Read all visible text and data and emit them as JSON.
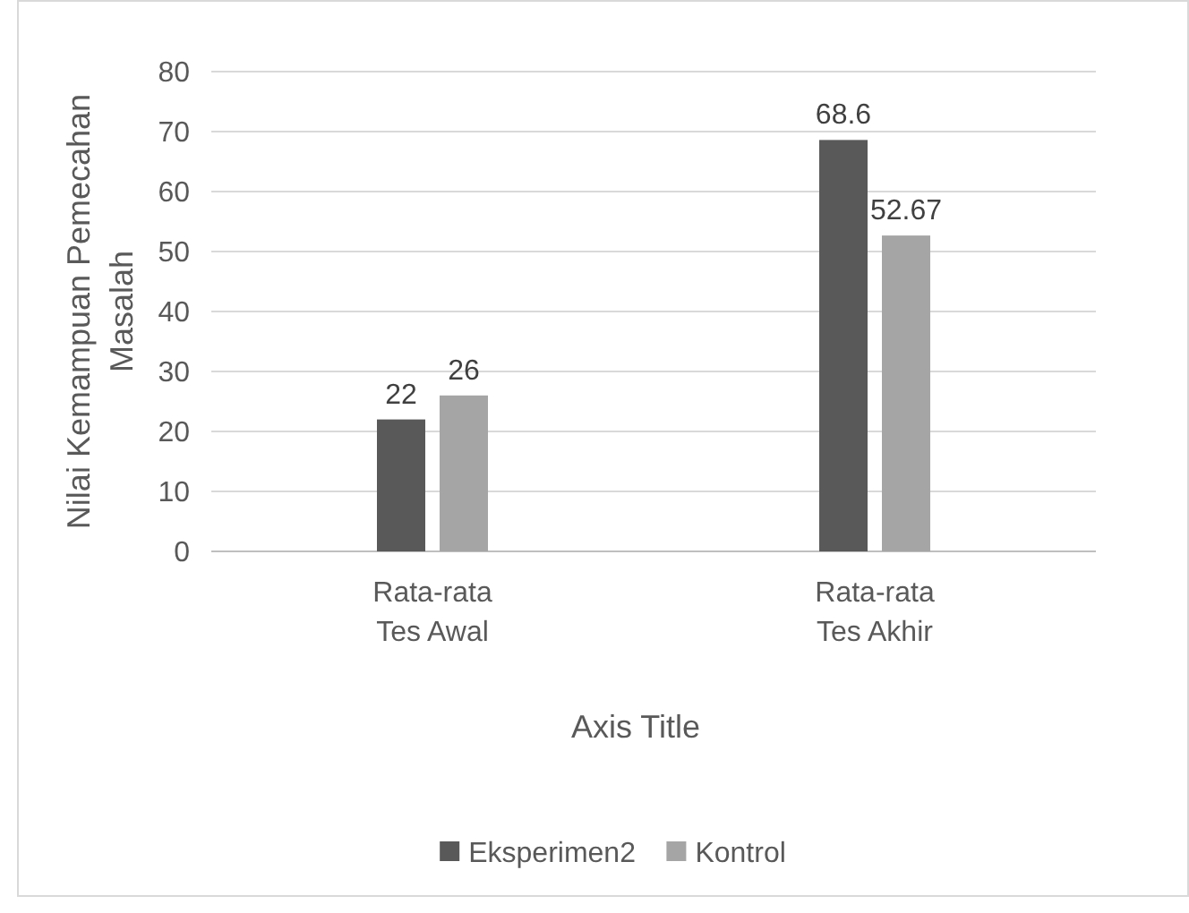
{
  "chart_data": {
    "type": "bar",
    "xlabel": "Axis Title",
    "ylabel": "Nilai Kemampuan Pemecahan Masalah",
    "categories": [
      "Rata-rata Tes Awal",
      "Rata-rata Tes Akhir"
    ],
    "series": [
      {
        "name": "Eksperimen2",
        "color": "#595959",
        "values": [
          22,
          68.6
        ]
      },
      {
        "name": "Kontrol",
        "color": "#a5a5a5",
        "values": [
          26,
          52.67
        ]
      }
    ],
    "ylim": [
      0,
      80
    ],
    "yticks": [
      0,
      10,
      20,
      30,
      40,
      50,
      60,
      70,
      80
    ],
    "grid": "y",
    "legend": "bottom",
    "data_labels": true
  }
}
